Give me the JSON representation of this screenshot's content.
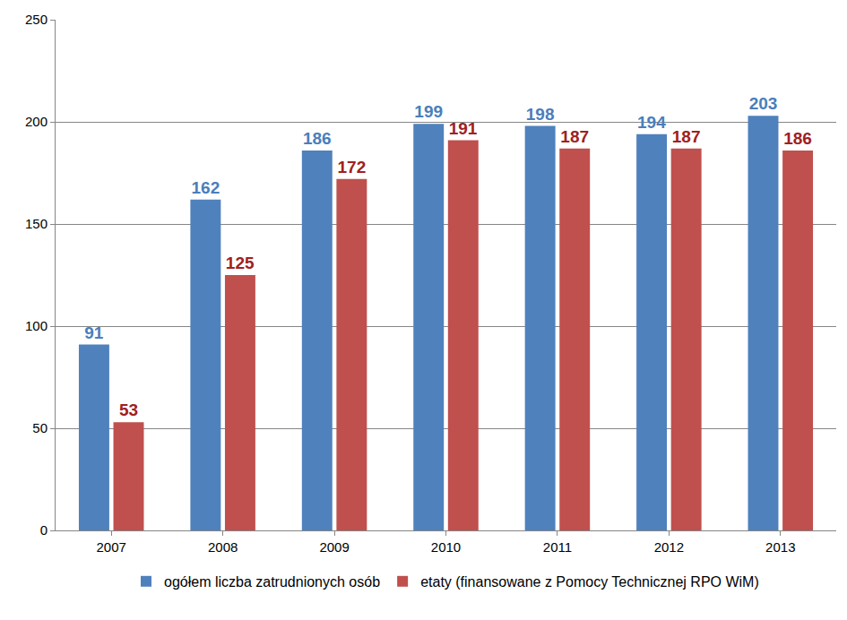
{
  "chart_data": {
    "type": "bar",
    "categories": [
      "2007",
      "2008",
      "2009",
      "2010",
      "2011",
      "2012",
      "2013"
    ],
    "series": [
      {
        "name": "ogółem liczba zatrudnionych osób",
        "color": "#4F81BD",
        "values": [
          91,
          162,
          186,
          199,
          198,
          194,
          203
        ]
      },
      {
        "name": "etaty (finansowane z Pomocy Technicznej RPO WiM)",
        "color": "#C0504D",
        "values": [
          53,
          125,
          172,
          191,
          187,
          187,
          186
        ]
      }
    ],
    "ylim": [
      0,
      250
    ],
    "yticks": [
      0,
      50,
      100,
      150,
      200,
      250
    ],
    "grid": true,
    "legend": "bottom",
    "data_labels": true
  }
}
